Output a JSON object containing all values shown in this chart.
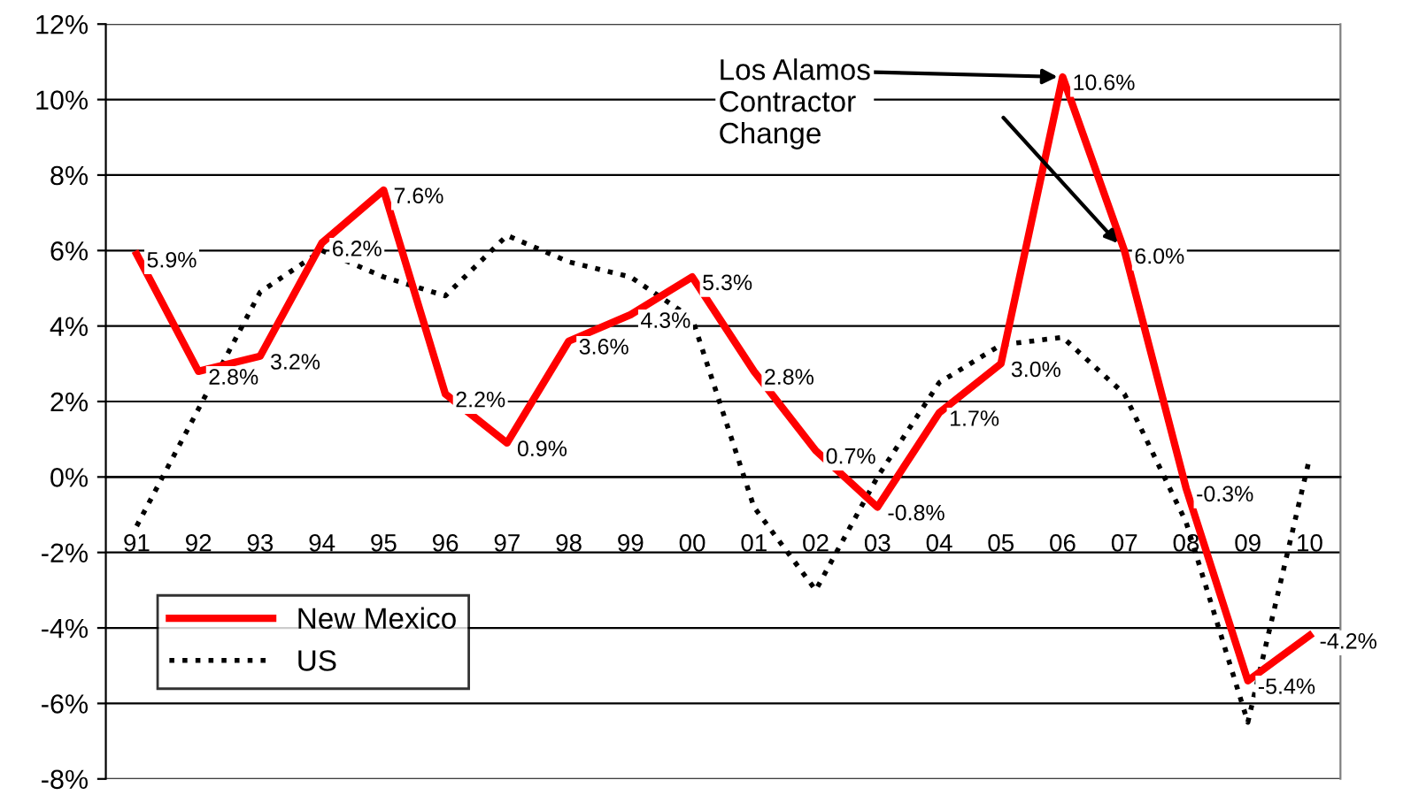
{
  "chart_data": {
    "type": "line",
    "categories": [
      "91",
      "92",
      "93",
      "94",
      "95",
      "96",
      "97",
      "98",
      "99",
      "00",
      "01",
      "02",
      "03",
      "04",
      "05",
      "06",
      "07",
      "08",
      "09",
      "10"
    ],
    "series": [
      {
        "name": "New Mexico",
        "color": "#ff0000",
        "line_style": "solid",
        "values": [
          5.9,
          2.8,
          3.2,
          6.2,
          7.6,
          2.2,
          0.9,
          3.6,
          4.3,
          5.3,
          2.8,
          0.7,
          -0.8,
          1.7,
          3.0,
          10.6,
          6.0,
          -0.3,
          -5.4,
          -4.2
        ],
        "value_labels": [
          "5.9%",
          "2.8%",
          "3.2%",
          "6.2%",
          "7.6%",
          "2.2%",
          "0.9%",
          "3.6%",
          "4.3%",
          "5.3%",
          "2.8%",
          "0.7%",
          "-0.8%",
          "1.7%",
          "3.0%",
          "10.6%",
          "6.0%",
          "-0.3%",
          "-5.4%",
          "-4.2%"
        ]
      },
      {
        "name": "US",
        "color": "#000000",
        "line_style": "dotted",
        "values": [
          -1.3,
          1.8,
          4.9,
          6.0,
          5.3,
          4.8,
          6.4,
          5.7,
          5.3,
          4.2,
          -0.8,
          -3.0,
          0.0,
          2.5,
          3.5,
          3.7,
          2.2,
          -1.2,
          -6.5,
          0.5
        ]
      }
    ],
    "ylim": [
      -8,
      12
    ],
    "yticks": [
      {
        "value": -8,
        "label": "-8%"
      },
      {
        "value": -6,
        "label": "-6%"
      },
      {
        "value": -4,
        "label": "-4%"
      },
      {
        "value": -2,
        "label": "-2%"
      },
      {
        "value": 0,
        "label": "0%"
      },
      {
        "value": 2,
        "label": "2%"
      },
      {
        "value": 4,
        "label": "4%"
      },
      {
        "value": 6,
        "label": "6%"
      },
      {
        "value": 8,
        "label": "8%"
      },
      {
        "value": 10,
        "label": "10%"
      },
      {
        "value": 12,
        "label": "12%"
      }
    ],
    "grid": "y",
    "legend": "bottom left",
    "marker": "none",
    "annotations": [
      {
        "text": "Los Alamos\nContractor\nChange",
        "x": "06",
        "y": 10.6
      }
    ]
  }
}
